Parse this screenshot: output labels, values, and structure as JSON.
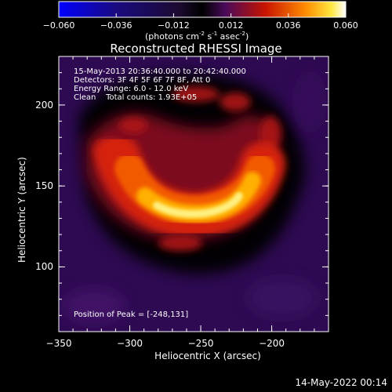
{
  "colorbar": {
    "tick_labels": [
      "-0.060",
      "-0.036",
      "-0.012",
      "0.012",
      "0.036",
      "0.060"
    ],
    "range": [
      -0.06,
      0.06
    ],
    "unit": {
      "pre": "(photons cm",
      "e1": "-2",
      "mid1": " s",
      "e2": "-1",
      "mid2": " asec",
      "e3": "-2",
      "post": ")"
    }
  },
  "title": "Reconstructed RHESSI Image",
  "annotation": {
    "time_range": "15-May-2013 20:36:40.000 to 20:42:40.000",
    "detectors": "Detectors: 3F 4F 5F 6F 7F 8F, Att 0",
    "energy": "Energy Range: 6.0 - 12.0 keV",
    "clean": "Clean    Total counts: 1.93E+05",
    "peak": "Position of Peak = [-248,131]"
  },
  "axes": {
    "xlabel": "Heliocentric X (arcsec)",
    "ylabel": "Heliocentric Y (arcsec)",
    "x_ticks": [
      "-350",
      "-300",
      "-250",
      "-200"
    ],
    "y_ticks": [
      "100",
      "150",
      "200"
    ],
    "xlim": [
      -350,
      -160
    ],
    "ylim": [
      60,
      230
    ]
  },
  "image": {
    "peak_position": [
      -248,
      131
    ],
    "peak_value": 0.06
  },
  "footer": {
    "timestamp": "14-May-2022 00:14"
  },
  "colors": {
    "negative": "#0000ff",
    "zero": "#000000",
    "mid": "#c81400",
    "high": "#ffb400",
    "max": "#ffffff"
  }
}
